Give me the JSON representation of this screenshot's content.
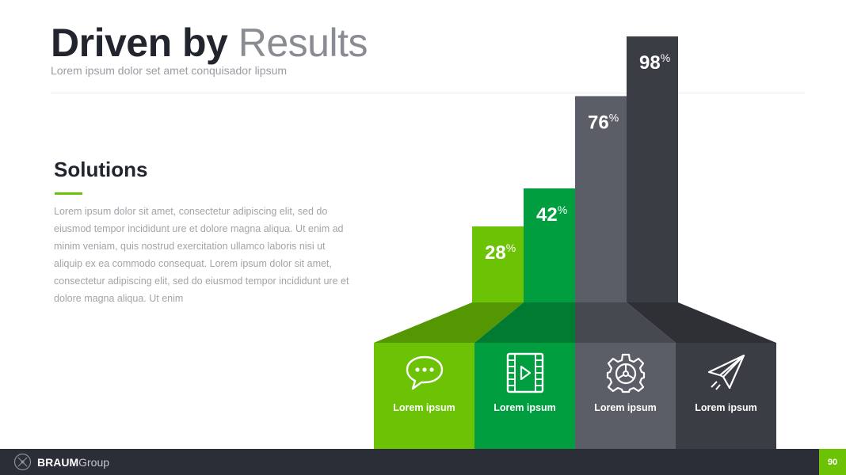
{
  "header": {
    "title_bold": "Driven by",
    "title_light": "Results",
    "subtitle": "Lorem ipsum dolor set amet conquisador lipsum"
  },
  "solutions": {
    "heading": "Solutions",
    "body": "Lorem ipsum dolor sit amet, consectetur adipiscing elit, sed do eiusmod tempor incididunt ure et dolore magna aliqua. Ut enim ad minim veniam, quis nostrud exercitation ullamco laboris nisi ut aliquip ex ea commodo consequat. Lorem ipsum dolor sit amet, consectetur adipiscing elit, sed do eiusmod tempor incididunt ure et dolore magna aliqua. Ut enim",
    "accent_color": "#6cc204"
  },
  "chart_data": {
    "type": "bar",
    "categories": [
      "Lorem ipsum",
      "Lorem ipsum",
      "Lorem ipsum",
      "Lorem ipsum"
    ],
    "values": [
      28,
      42,
      76,
      98
    ],
    "value_suffix": "%",
    "ylim": [
      0,
      100
    ],
    "colors": [
      "#6cc204",
      "#009e3f",
      "#5b5e66",
      "#3b3d45"
    ],
    "icons": [
      "chat-bubble-icon",
      "film-play-icon",
      "gear-icon",
      "paper-plane-icon"
    ],
    "title": "",
    "xlabel": "",
    "ylabel": ""
  },
  "footer": {
    "brand_bold": "BRAUM",
    "brand_light": "Group",
    "page_number": "90",
    "page_color": "#6cc204",
    "bar_color": "#2b2d37"
  }
}
